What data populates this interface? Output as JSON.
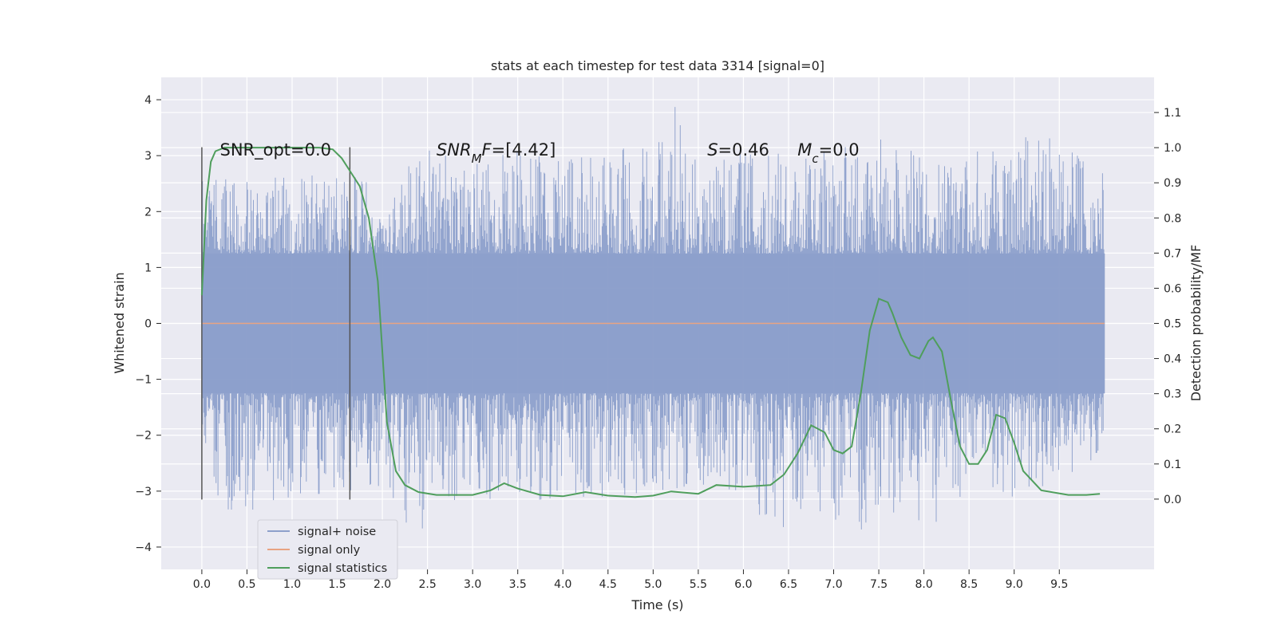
{
  "chart_data": {
    "type": "line",
    "title": "stats at each timestep for test data 3314 [signal=0]",
    "xlabel": "Time (s)",
    "ylabel": "Whitened strain",
    "ylabel_right": "Detection probability/MF",
    "xlim": [
      -0.45,
      10.55
    ],
    "ylim": [
      -4.4,
      4.4
    ],
    "ylim_right": [
      -0.2,
      1.2
    ],
    "x_ticks": [
      0.0,
      0.5,
      1.0,
      1.5,
      2.0,
      2.5,
      3.0,
      3.5,
      4.0,
      4.5,
      5.0,
      5.5,
      6.0,
      6.5,
      7.0,
      7.5,
      8.0,
      8.5,
      9.0,
      9.5
    ],
    "x_tick_labels": [
      "0.0",
      "0.5",
      "1.0",
      "1.5",
      "2.0",
      "2.5",
      "3.0",
      "3.5",
      "4.0",
      "4.5",
      "5.0",
      "5.5",
      "6.0",
      "6.5",
      "7.0",
      "7.5",
      "8.0",
      "8.5",
      "9.0",
      "9.5"
    ],
    "y_ticks": [
      4,
      3,
      2,
      1,
      0,
      -1,
      -2,
      -3,
      -4
    ],
    "y_tick_labels": [
      "4",
      "3",
      "2",
      "1",
      "0",
      "−1",
      "−2",
      "−3",
      "−4"
    ],
    "y_right_ticks": [
      1.1,
      1.0,
      0.9,
      0.8,
      0.7,
      0.6,
      0.5,
      0.4,
      0.3,
      0.2,
      0.1,
      0.0
    ],
    "y_right_tick_labels": [
      "1.1",
      "1.0",
      "0.9",
      "0.8",
      "0.7",
      "0.6",
      "0.5",
      "0.4",
      "0.3",
      "0.2",
      "0.1",
      "0.0"
    ],
    "grid": true,
    "legend_position": "lower-left",
    "colors": {
      "noise": "#8da0cb",
      "signal": "#e8a382",
      "stats": "#4f9e5c",
      "window": "#555555",
      "background": "#eaeaf2",
      "grid": "#ffffff"
    },
    "series": [
      {
        "name": "signal+ noise",
        "kind": "noise",
        "x_range": [
          0.0,
          10.0
        ],
        "envelope_upper": [
          {
            "x": 0.0,
            "y": 2.55
          },
          {
            "x": 0.5,
            "y": 2.6
          },
          {
            "x": 1.0,
            "y": 2.7
          },
          {
            "x": 1.5,
            "y": 2.75
          },
          {
            "x": 2.0,
            "y": 2.4
          },
          {
            "x": 2.5,
            "y": 3.1
          },
          {
            "x": 3.0,
            "y": 2.85
          },
          {
            "x": 3.5,
            "y": 3.1
          },
          {
            "x": 4.0,
            "y": 2.9
          },
          {
            "x": 4.5,
            "y": 3.1
          },
          {
            "x": 5.0,
            "y": 3.2
          },
          {
            "x": 5.25,
            "y": 4.0
          },
          {
            "x": 5.5,
            "y": 2.8
          },
          {
            "x": 6.0,
            "y": 3.15
          },
          {
            "x": 6.5,
            "y": 3.0
          },
          {
            "x": 7.0,
            "y": 3.1
          },
          {
            "x": 7.5,
            "y": 3.3
          },
          {
            "x": 8.0,
            "y": 3.0
          },
          {
            "x": 8.5,
            "y": 3.1
          },
          {
            "x": 9.0,
            "y": 3.05
          },
          {
            "x": 9.3,
            "y": 3.7
          },
          {
            "x": 9.5,
            "y": 3.2
          },
          {
            "x": 10.0,
            "y": 2.7
          }
        ],
        "envelope_lower": [
          {
            "x": 0.0,
            "y": -3.3
          },
          {
            "x": 0.5,
            "y": -3.35
          },
          {
            "x": 1.0,
            "y": -3.2
          },
          {
            "x": 1.5,
            "y": -3.0
          },
          {
            "x": 2.0,
            "y": -3.0
          },
          {
            "x": 2.35,
            "y": -3.85
          },
          {
            "x": 2.6,
            "y": -3.5
          },
          {
            "x": 3.0,
            "y": -3.1
          },
          {
            "x": 3.5,
            "y": -3.2
          },
          {
            "x": 4.0,
            "y": -3.1
          },
          {
            "x": 4.5,
            "y": -3.1
          },
          {
            "x": 5.0,
            "y": -3.0
          },
          {
            "x": 5.5,
            "y": -2.9
          },
          {
            "x": 6.0,
            "y": -3.0
          },
          {
            "x": 6.35,
            "y": -3.85
          },
          {
            "x": 6.7,
            "y": -3.2
          },
          {
            "x": 7.2,
            "y": -3.9
          },
          {
            "x": 7.5,
            "y": -3.3
          },
          {
            "x": 8.1,
            "y": -3.6
          },
          {
            "x": 8.5,
            "y": -3.0
          },
          {
            "x": 9.0,
            "y": -3.1
          },
          {
            "x": 9.5,
            "y": -2.8
          },
          {
            "x": 10.0,
            "y": -2.3
          }
        ],
        "core_band": [
          -1.25,
          1.25
        ]
      },
      {
        "name": "signal only",
        "kind": "signal",
        "x": [
          0.0,
          10.0
        ],
        "y": [
          0.0,
          0.0
        ]
      },
      {
        "name": "signal statistics",
        "kind": "stats",
        "axis": "right",
        "x": [
          0.0,
          0.05,
          0.1,
          0.15,
          0.25,
          0.5,
          1.0,
          1.3,
          1.45,
          1.55,
          1.65,
          1.75,
          1.85,
          1.95,
          2.05,
          2.15,
          2.25,
          2.4,
          2.6,
          3.0,
          3.2,
          3.35,
          3.5,
          3.75,
          4.0,
          4.25,
          4.5,
          4.8,
          5.0,
          5.2,
          5.5,
          5.7,
          6.0,
          6.3,
          6.45,
          6.6,
          6.75,
          6.9,
          7.0,
          7.1,
          7.2,
          7.3,
          7.4,
          7.5,
          7.6,
          7.65,
          7.75,
          7.85,
          7.95,
          8.05,
          8.1,
          8.2,
          8.3,
          8.4,
          8.5,
          8.6,
          8.7,
          8.8,
          8.9,
          9.0,
          9.1,
          9.3,
          9.6,
          9.8,
          9.95
        ],
        "y": [
          0.58,
          0.85,
          0.96,
          0.99,
          1.0,
          1.0,
          1.0,
          1.0,
          0.995,
          0.97,
          0.93,
          0.89,
          0.8,
          0.62,
          0.22,
          0.08,
          0.04,
          0.02,
          0.012,
          0.012,
          0.025,
          0.045,
          0.03,
          0.012,
          0.008,
          0.02,
          0.01,
          0.006,
          0.01,
          0.022,
          0.015,
          0.04,
          0.035,
          0.04,
          0.07,
          0.13,
          0.21,
          0.19,
          0.14,
          0.13,
          0.15,
          0.3,
          0.48,
          0.57,
          0.56,
          0.53,
          0.46,
          0.41,
          0.4,
          0.45,
          0.46,
          0.42,
          0.28,
          0.15,
          0.1,
          0.1,
          0.14,
          0.24,
          0.23,
          0.16,
          0.08,
          0.025,
          0.012,
          0.012,
          0.015
        ]
      }
    ],
    "window_markers": [
      {
        "x": 0.0,
        "y_range": [
          -3.15,
          3.15
        ]
      },
      {
        "x": 1.64,
        "y_range": [
          -3.15,
          3.15
        ]
      }
    ],
    "annotations": [
      {
        "x": 0.2,
        "y": 3.1,
        "parts": [
          {
            "text": "SNR_opt=0.0",
            "italic": false
          }
        ]
      },
      {
        "x": 2.6,
        "y": 3.1,
        "parts": [
          {
            "text": "SNR",
            "italic": true
          },
          {
            "text": "M",
            "italic": true,
            "sub": true
          },
          {
            "text": "F",
            "italic": true
          },
          {
            "text": "=[4.42]",
            "italic": false
          }
        ]
      },
      {
        "x": 5.6,
        "y": 3.1,
        "parts": [
          {
            "text": "S",
            "italic": true
          },
          {
            "text": "=0.46",
            "italic": false
          }
        ]
      },
      {
        "x": 6.6,
        "y": 3.1,
        "parts": [
          {
            "text": "M",
            "italic": true
          },
          {
            "text": "c",
            "italic": true,
            "sub": true
          },
          {
            "text": "=0.0",
            "italic": false
          }
        ]
      }
    ],
    "legend": [
      {
        "label": "signal+ noise",
        "color": "#8da0cb"
      },
      {
        "label": "signal only",
        "color": "#e8a382"
      },
      {
        "label": "signal statistics",
        "color": "#4f9e5c"
      }
    ]
  }
}
